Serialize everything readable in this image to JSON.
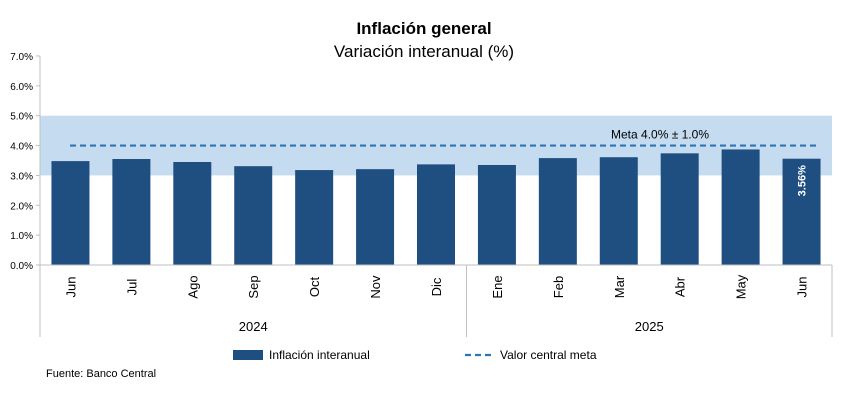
{
  "chart_data": {
    "type": "bar",
    "title": "Inflación general",
    "subtitle": "Variación interanual (%)",
    "categories": [
      "Jun",
      "Jul",
      "Ago",
      "Sep",
      "Oct",
      "Nov",
      "Dic",
      "Ene",
      "Feb",
      "Mar",
      "Abr",
      "May",
      "Jun"
    ],
    "groups": [
      {
        "label": "2024",
        "start": 0,
        "end": 6
      },
      {
        "label": "2025",
        "start": 7,
        "end": 12
      }
    ],
    "series": [
      {
        "name": "Inflación interanual",
        "color": "#1f4e80",
        "values": [
          3.48,
          3.55,
          3.45,
          3.31,
          3.18,
          3.21,
          3.37,
          3.35,
          3.58,
          3.61,
          3.74,
          3.87,
          3.56
        ]
      }
    ],
    "target": {
      "name": "Valor central meta",
      "value": 4.0,
      "band": [
        3.0,
        5.0
      ],
      "label": "Meta 4.0% ± 1.0%",
      "line_color": "#2e75b6",
      "band_color": "#c5dcf0"
    },
    "data_label": {
      "index": 12,
      "text": "3.56%"
    },
    "ylim": [
      0,
      7
    ],
    "yticks": [
      "0.0%",
      "1.0%",
      "2.0%",
      "3.0%",
      "4.0%",
      "5.0%",
      "6.0%",
      "7.0%"
    ],
    "legend_position": "bottom",
    "xlabel": "",
    "ylabel": ""
  },
  "source": "Fuente: Banco Central"
}
